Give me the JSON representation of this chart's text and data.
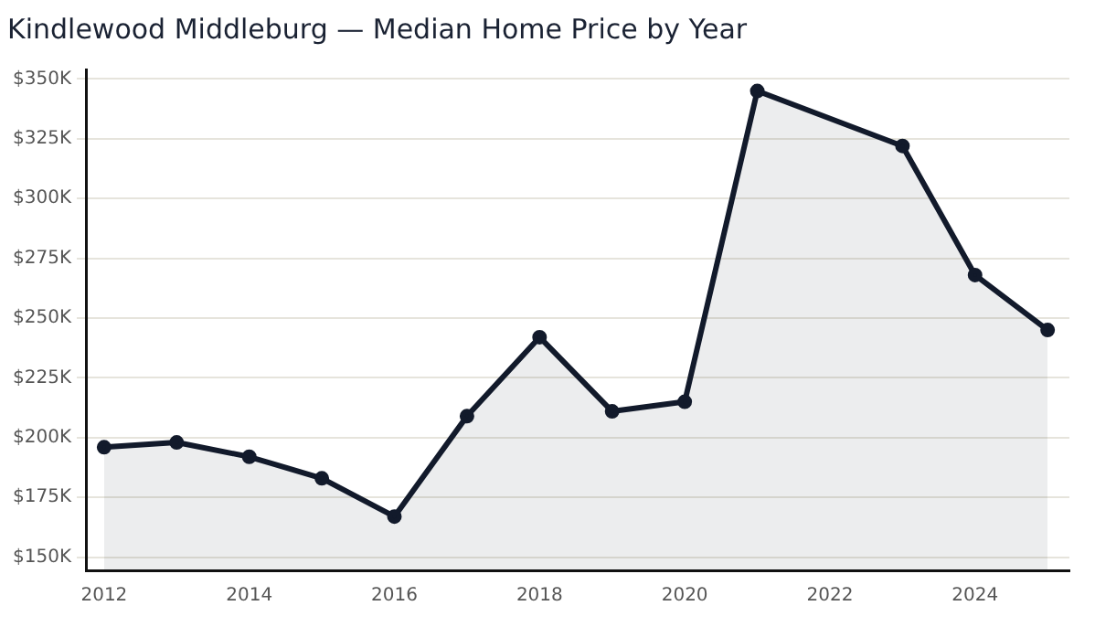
{
  "chart_data": {
    "type": "area",
    "title": "Kindlewood Middleburg — Median Home Price by Year",
    "x": [
      2012,
      2013,
      2014,
      2015,
      2016,
      2017,
      2018,
      2019,
      2020,
      2021,
      2023,
      2024,
      2025
    ],
    "series": [
      {
        "color": "#121a2b",
        "values": [
          196000,
          198000,
          192000,
          183000,
          167000,
          209000,
          242000,
          211000,
          215000,
          345000,
          322000,
          268000,
          245000
        ]
      }
    ],
    "xlim": [
      2011.75,
      2025.3
    ],
    "xticks": [
      2012,
      2014,
      2016,
      2018,
      2020,
      2022,
      2024
    ],
    "ylim": [
      144500,
      354000
    ],
    "yticks": [
      {
        "value": 150000,
        "label": "$150K"
      },
      {
        "value": 175000,
        "label": "$175K"
      },
      {
        "value": 200000,
        "label": "$200K"
      },
      {
        "value": 225000,
        "label": "$225K"
      },
      {
        "value": 250000,
        "label": "$250K"
      },
      {
        "value": 275000,
        "label": "$275K"
      },
      {
        "value": 300000,
        "label": "$300K"
      },
      {
        "value": 325000,
        "label": "$325K"
      },
      {
        "value": 350000,
        "label": "$350K"
      }
    ],
    "grid": "y",
    "marker": "circle",
    "legend": false
  }
}
